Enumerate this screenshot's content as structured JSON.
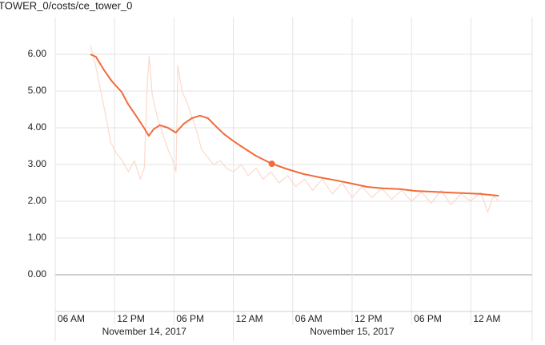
{
  "chart_data": {
    "type": "line",
    "title": "TOWER_0/costs/ce_tower_0",
    "xlim": [
      6,
      54.2
    ],
    "ylim": [
      -1,
      7
    ],
    "xticks": [
      {
        "value": 6,
        "label": "06 AM"
      },
      {
        "value": 12,
        "label": "12 PM"
      },
      {
        "value": 18,
        "label": "06 PM"
      },
      {
        "value": 24,
        "label": "12 AM"
      },
      {
        "value": 30,
        "label": "06 AM"
      },
      {
        "value": 36,
        "label": "12 PM"
      },
      {
        "value": 42,
        "label": "06 PM"
      },
      {
        "value": 48,
        "label": "12 AM"
      }
    ],
    "xdates": [
      {
        "value": 0,
        "label": "November 14, 2017"
      },
      {
        "value": 24,
        "label": "November 15, 2017"
      }
    ],
    "yticks": [
      {
        "value": 0,
        "label": "0.00"
      },
      {
        "value": 1,
        "label": "1.00"
      },
      {
        "value": 2,
        "label": "2.00"
      },
      {
        "value": 3,
        "label": "3.00"
      },
      {
        "value": 4,
        "label": "4.00"
      },
      {
        "value": 5,
        "label": "5.00"
      },
      {
        "value": 6,
        "label": "6.00"
      }
    ],
    "grid": true,
    "highlight_index": 22,
    "series": [
      {
        "color": "#fcd9cc",
        "x": [
          9.55,
          10.0,
          10.6,
          11.2,
          11.6,
          12.2,
          12.8,
          13.4,
          14.0,
          14.6,
          15.0,
          15.3,
          15.5,
          15.8,
          16.3,
          16.9,
          17.4,
          17.9,
          18.2,
          18.4,
          18.8,
          19.3,
          19.8,
          20.3,
          20.8,
          21.4,
          22.0,
          22.7,
          23.3,
          24.0,
          24.8,
          25.5,
          26.3,
          27.0,
          27.8,
          28.6,
          29.5,
          30.3,
          31.2,
          32.0,
          33.0,
          34.0,
          35.0,
          36.0,
          37.0,
          38.0,
          39.0,
          40.0,
          41.0,
          42.0,
          43.0,
          44.0,
          45.0,
          46.0,
          47.0,
          48.0,
          49.0,
          49.7,
          50.3,
          50.83
        ],
        "values": [
          6.25,
          5.8,
          5.0,
          4.2,
          3.6,
          3.3,
          3.1,
          2.8,
          3.1,
          2.6,
          2.9,
          5.2,
          5.95,
          4.9,
          4.3,
          3.8,
          3.4,
          3.1,
          2.8,
          5.7,
          5.0,
          4.7,
          4.3,
          3.9,
          3.4,
          3.2,
          3.0,
          3.1,
          2.9,
          2.8,
          3.0,
          2.7,
          2.9,
          2.6,
          2.8,
          2.5,
          2.7,
          2.4,
          2.6,
          2.3,
          2.6,
          2.2,
          2.5,
          2.1,
          2.4,
          2.1,
          2.35,
          2.05,
          2.3,
          2.0,
          2.25,
          1.95,
          2.3,
          1.9,
          2.2,
          2.0,
          2.25,
          1.7,
          2.15,
          2.0
        ]
      },
      {
        "color": "#f26b3a",
        "x": [
          9.55,
          10.12,
          10.93,
          11.74,
          12.7,
          13.35,
          14.16,
          14.97,
          15.45,
          15.94,
          16.58,
          17.39,
          18.19,
          19.0,
          19.81,
          20.62,
          21.43,
          22.24,
          23.05,
          23.85,
          24.66,
          26.27,
          27.89,
          29.51,
          31.12,
          32.74,
          34.35,
          35.97,
          37.58,
          39.2,
          40.81,
          42.43,
          44.05,
          45.66,
          47.28,
          48.89,
          50.83
        ],
        "values": [
          6.0,
          5.93,
          5.57,
          5.26,
          4.98,
          4.65,
          4.33,
          4.0,
          3.78,
          3.96,
          4.07,
          4.0,
          3.87,
          4.11,
          4.26,
          4.33,
          4.26,
          4.04,
          3.83,
          3.67,
          3.52,
          3.24,
          3.02,
          2.87,
          2.74,
          2.65,
          2.57,
          2.48,
          2.39,
          2.35,
          2.33,
          2.28,
          2.26,
          2.24,
          2.22,
          2.2,
          2.15
        ]
      }
    ]
  }
}
